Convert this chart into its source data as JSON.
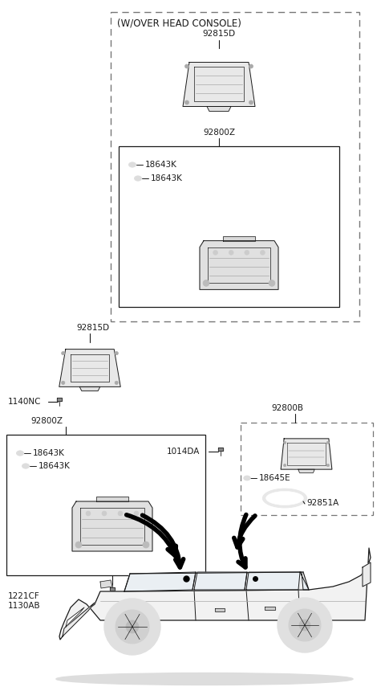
{
  "bg_color": "#ffffff",
  "lc": "#1a1a1a",
  "gray": "#888888",
  "lgray": "#cccccc",
  "dgray": "#555555",
  "labels": {
    "overhead_console": "(W/OVER HEAD CONSOLE)",
    "p92815D": "92815D",
    "p92800Z": "92800Z",
    "p92800B": "92800B",
    "p1140NC": "1140NC",
    "p1014DA": "1014DA",
    "p1221CF": "1221CF",
    "p1130AB": "1130AB",
    "p18643K": "18643K",
    "p18645E": "18645E",
    "p92851A": "92851A"
  },
  "fs": 7.5
}
